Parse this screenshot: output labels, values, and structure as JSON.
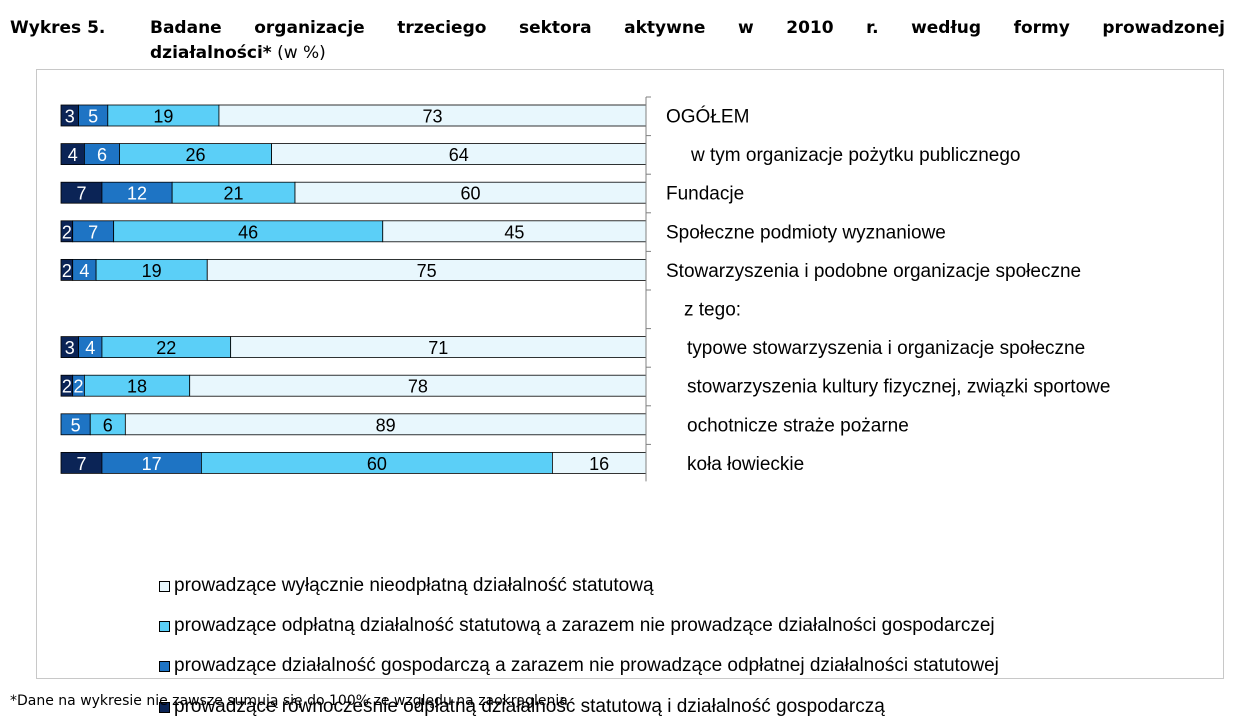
{
  "title": {
    "label": "Wykres 5.",
    "line1": "Badane organizacje trzeciego sektora aktywne w 2010 r. według formy prowadzonej",
    "line2_bold": "działalności*",
    "line2_rest": " (w %)"
  },
  "footnote": "*Dane na wykresie nie zawsze sumują się do 100% ze względu na zaokrąglenia",
  "legend": [
    {
      "label": "prowadzące wyłącznie nieodpłatną działalność statutową",
      "color": "#e8f7fd"
    },
    {
      "label": "prowadzące odpłatną działalność statutową a zarazem nie prowadzące działalności gospodarczej",
      "color": "#5bcff7"
    },
    {
      "label": "prowadzące działalność gospodarczą a zarazem nie prowadzące odpłatnej działalności statutowej",
      "color": "#1e74c4"
    },
    {
      "label": "prowadzące równocześnie odpłatną działalność statutową i działalność gospodarczą",
      "color": "#0b2456"
    }
  ],
  "chart_data": {
    "type": "bar",
    "orientation": "horizontal",
    "stacked": true,
    "categories": [
      "OGÓŁEM",
      "w tym organizacje pożytku publicznego",
      "Fundacje",
      "Społeczne podmioty wyznaniowe",
      "Stowarzyszenia i podobne organizacje społeczne",
      "z tego:",
      "typowe stowarzyszenia i organizacje społeczne",
      "stowarzyszenia kultury fizycznej, związki sportowe",
      "ochotnicze straże pożarne",
      "koła łowieckie"
    ],
    "series": [
      {
        "name": "prowadzące równocześnie odpłatną działalność statutową i działalność gospodarczą",
        "color": "#0b2456",
        "values": [
          3,
          4,
          7,
          2,
          2,
          null,
          3,
          2,
          0,
          7
        ]
      },
      {
        "name": "prowadzące działalność gospodarczą a zarazem nie prowadzące odpłatnej działalności statutowej",
        "color": "#1e74c4",
        "values": [
          5,
          6,
          12,
          7,
          4,
          null,
          4,
          2,
          5,
          17
        ]
      },
      {
        "name": "prowadzące odpłatną działalność statutową a zarazem nie prowadzące działalności gospodarczej",
        "color": "#5bcff7",
        "values": [
          19,
          26,
          21,
          46,
          19,
          null,
          22,
          18,
          6,
          60
        ]
      },
      {
        "name": "prowadzące wyłącznie nieodpłatną działalność statutową",
        "color": "#e8f7fd",
        "values": [
          73,
          64,
          60,
          45,
          75,
          null,
          71,
          78,
          89,
          16
        ]
      }
    ],
    "xlim": [
      0,
      100
    ]
  }
}
